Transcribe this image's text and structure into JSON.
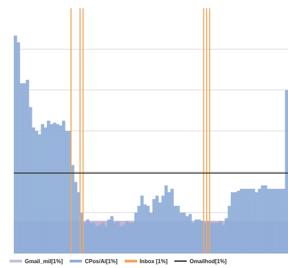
{
  "chart_data": {
    "type": "bar",
    "title": "",
    "xlabel": "",
    "ylabel": "",
    "ylim": [
      0,
      360
    ],
    "grid": true,
    "legend_placement": "bottom",
    "colors": {
      "background_band": "#b8a8c8",
      "bars": "#8faed8",
      "events": "#f2a65a",
      "threshold": "#333333",
      "grid": "#d8d8d8"
    },
    "band": {
      "name": "Gmail_mil[1%]",
      "value": 48
    },
    "threshold": {
      "name": "Omailhod[1%]",
      "value": 118
    },
    "legend": [
      {
        "label": "Gmail_mil[1%]",
        "color": "#c9bedc",
        "kind": "band"
      },
      {
        "label": "CPos/Ai[1%]",
        "color": "#8faed8",
        "kind": "bar"
      },
      {
        "label": "Inbox [1%]",
        "color": "#f2a65a",
        "kind": "event"
      },
      {
        "label": "Omailhod[1%]",
        "color": "#333333",
        "kind": "line"
      }
    ],
    "series": [
      {
        "name": "CPos/Ai[1%]",
        "values": [
          320,
          310,
          250,
          250,
          255,
          215,
          185,
          180,
          175,
          190,
          185,
          195,
          190,
          192,
          190,
          188,
          195,
          180,
          180,
          130,
          105,
          90,
          60,
          45,
          50,
          45,
          45,
          40,
          42,
          45,
          40,
          50,
          55,
          45,
          47,
          40,
          42,
          48,
          45,
          45,
          60,
          70,
          85,
          72,
          70,
          60,
          80,
          85,
          75,
          85,
          100,
          90,
          95,
          70,
          70,
          60,
          60,
          55,
          58,
          45,
          50,
          50,
          48,
          45,
          48,
          45,
          45,
          45,
          48,
          42,
          52,
          70,
          90,
          90,
          92,
          95,
          95,
          95,
          95,
          95,
          90,
          95,
          100,
          100,
          95,
          95,
          95,
          95,
          95,
          95,
          240
        ]
      }
    ],
    "events": [
      19,
      22,
      23,
      63,
      64,
      65
    ]
  }
}
